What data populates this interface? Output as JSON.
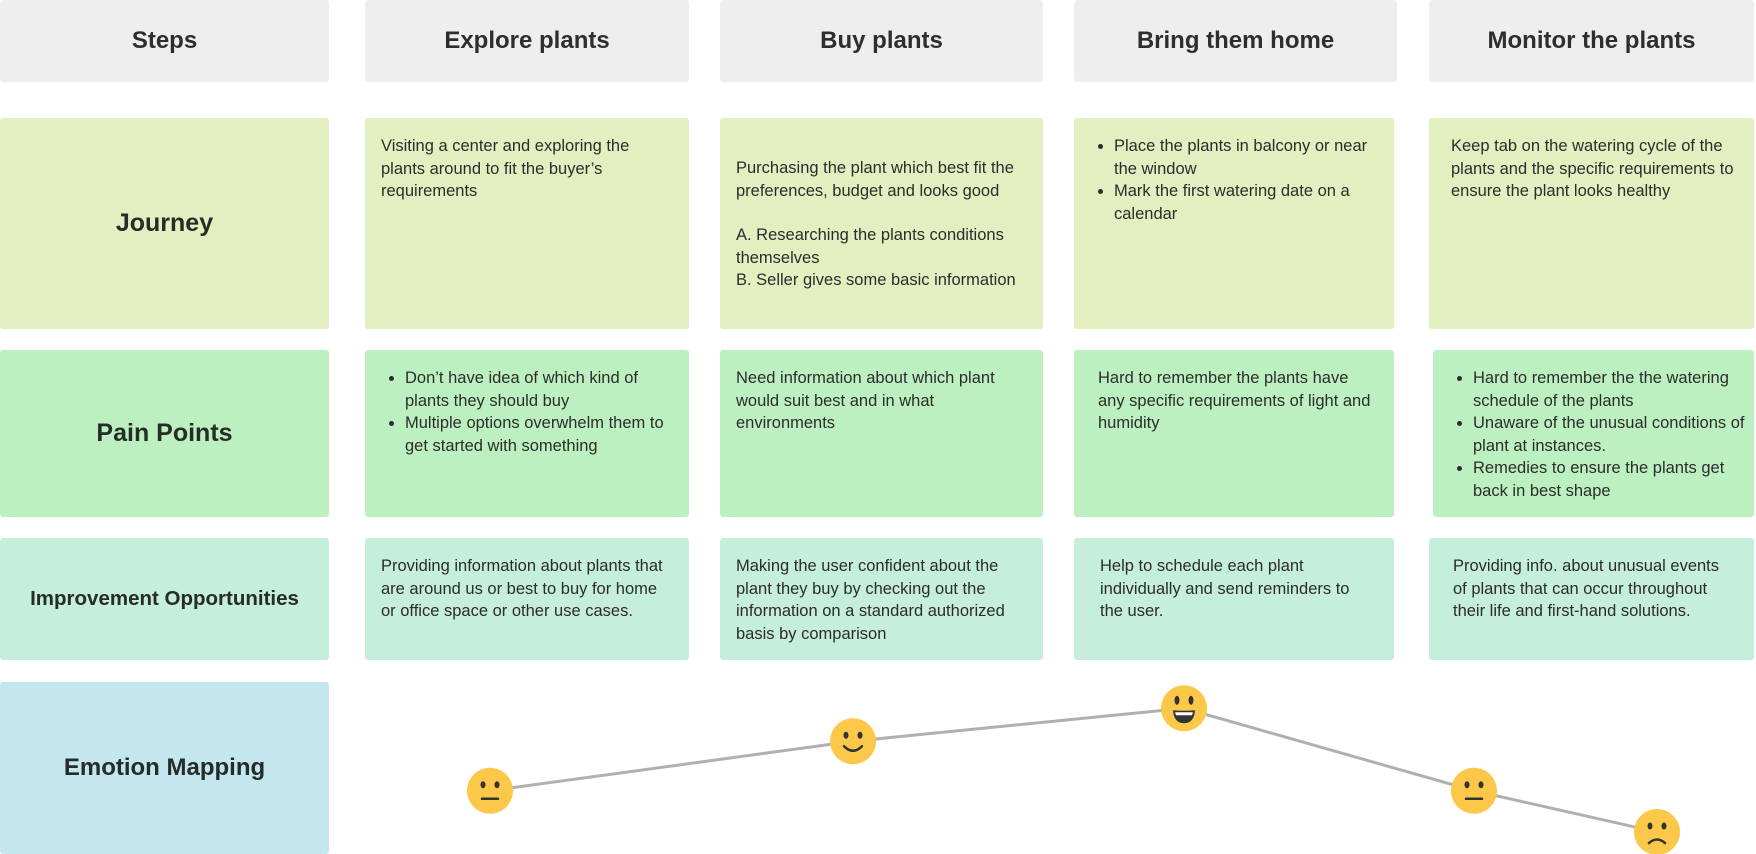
{
  "headers": [
    "Steps",
    "Explore plants",
    "Buy plants",
    "Bring them home",
    "Monitor the plants"
  ],
  "rows": {
    "journey": {
      "label": "Journey",
      "cells": [
        {
          "text": "Visiting a center and exploring the plants around to fit the buyer’s requirements"
        },
        {
          "text": "Purchasing the plant which best fit the preferences, budget and looks good",
          "line_a": "A. Researching the plants conditions themselves",
          "line_b": "B. Seller gives some basic information"
        },
        {
          "bullets": [
            "Place the plants in balcony or near the window",
            "Mark the first watering date on a calendar"
          ]
        },
        {
          "text": "Keep tab on the watering cycle of the plants and the specific requirements to ensure the plant looks healthy"
        }
      ]
    },
    "pain_points": {
      "label": "Pain Points",
      "cells": [
        {
          "bullets": [
            "Don’t have idea of which kind of plants they should buy",
            "Multiple options overwhelm them to get started with something"
          ]
        },
        {
          "text": "Need information about which plant would suit best and in what environments"
        },
        {
          "text": "Hard to remember the plants have any specific requirements of light and humidity"
        },
        {
          "bullets": [
            "Hard to remember the the watering schedule of the plants",
            "Unaware of the unusual conditions of plant at instances.",
            "Remedies to ensure the plants get back in best shape"
          ]
        }
      ]
    },
    "improvement": {
      "label": "Improvement Opportunities",
      "cells": [
        {
          "text": "Providing information about plants that are around us or best to buy for home or office space or other use cases."
        },
        {
          "text": "Making the user confident about the plant they buy by checking out the information on a standard authorized basis by comparison"
        },
        {
          "text": "Help to schedule each plant individually and send reminders to the user."
        },
        {
          "text": "Providing info. about unusual events of plants that can occur throughout their life and first-hand solutions."
        }
      ]
    },
    "emotion": {
      "label": "Emotion Mapping",
      "points": [
        {
          "emotion": "neutral",
          "icon": "neutral-face-icon",
          "level": 0.25
        },
        {
          "emotion": "happy",
          "icon": "smiling-face-icon",
          "level": 0.55
        },
        {
          "emotion": "very-happy",
          "icon": "grinning-face-icon",
          "level": 0.75
        },
        {
          "emotion": "neutral",
          "icon": "neutral-face-icon",
          "level": 0.25
        },
        {
          "emotion": "sad",
          "icon": "frowning-face-icon",
          "level": 0.0
        }
      ]
    }
  },
  "colors": {
    "header": "#eeeeee",
    "journey": "#e2efc0",
    "pain_points": "#bdf0c0",
    "improvement": "#c5eedb",
    "emotion": "#c3e6ef",
    "emoji": "#fcc84a",
    "line": "#b0b0b0"
  }
}
